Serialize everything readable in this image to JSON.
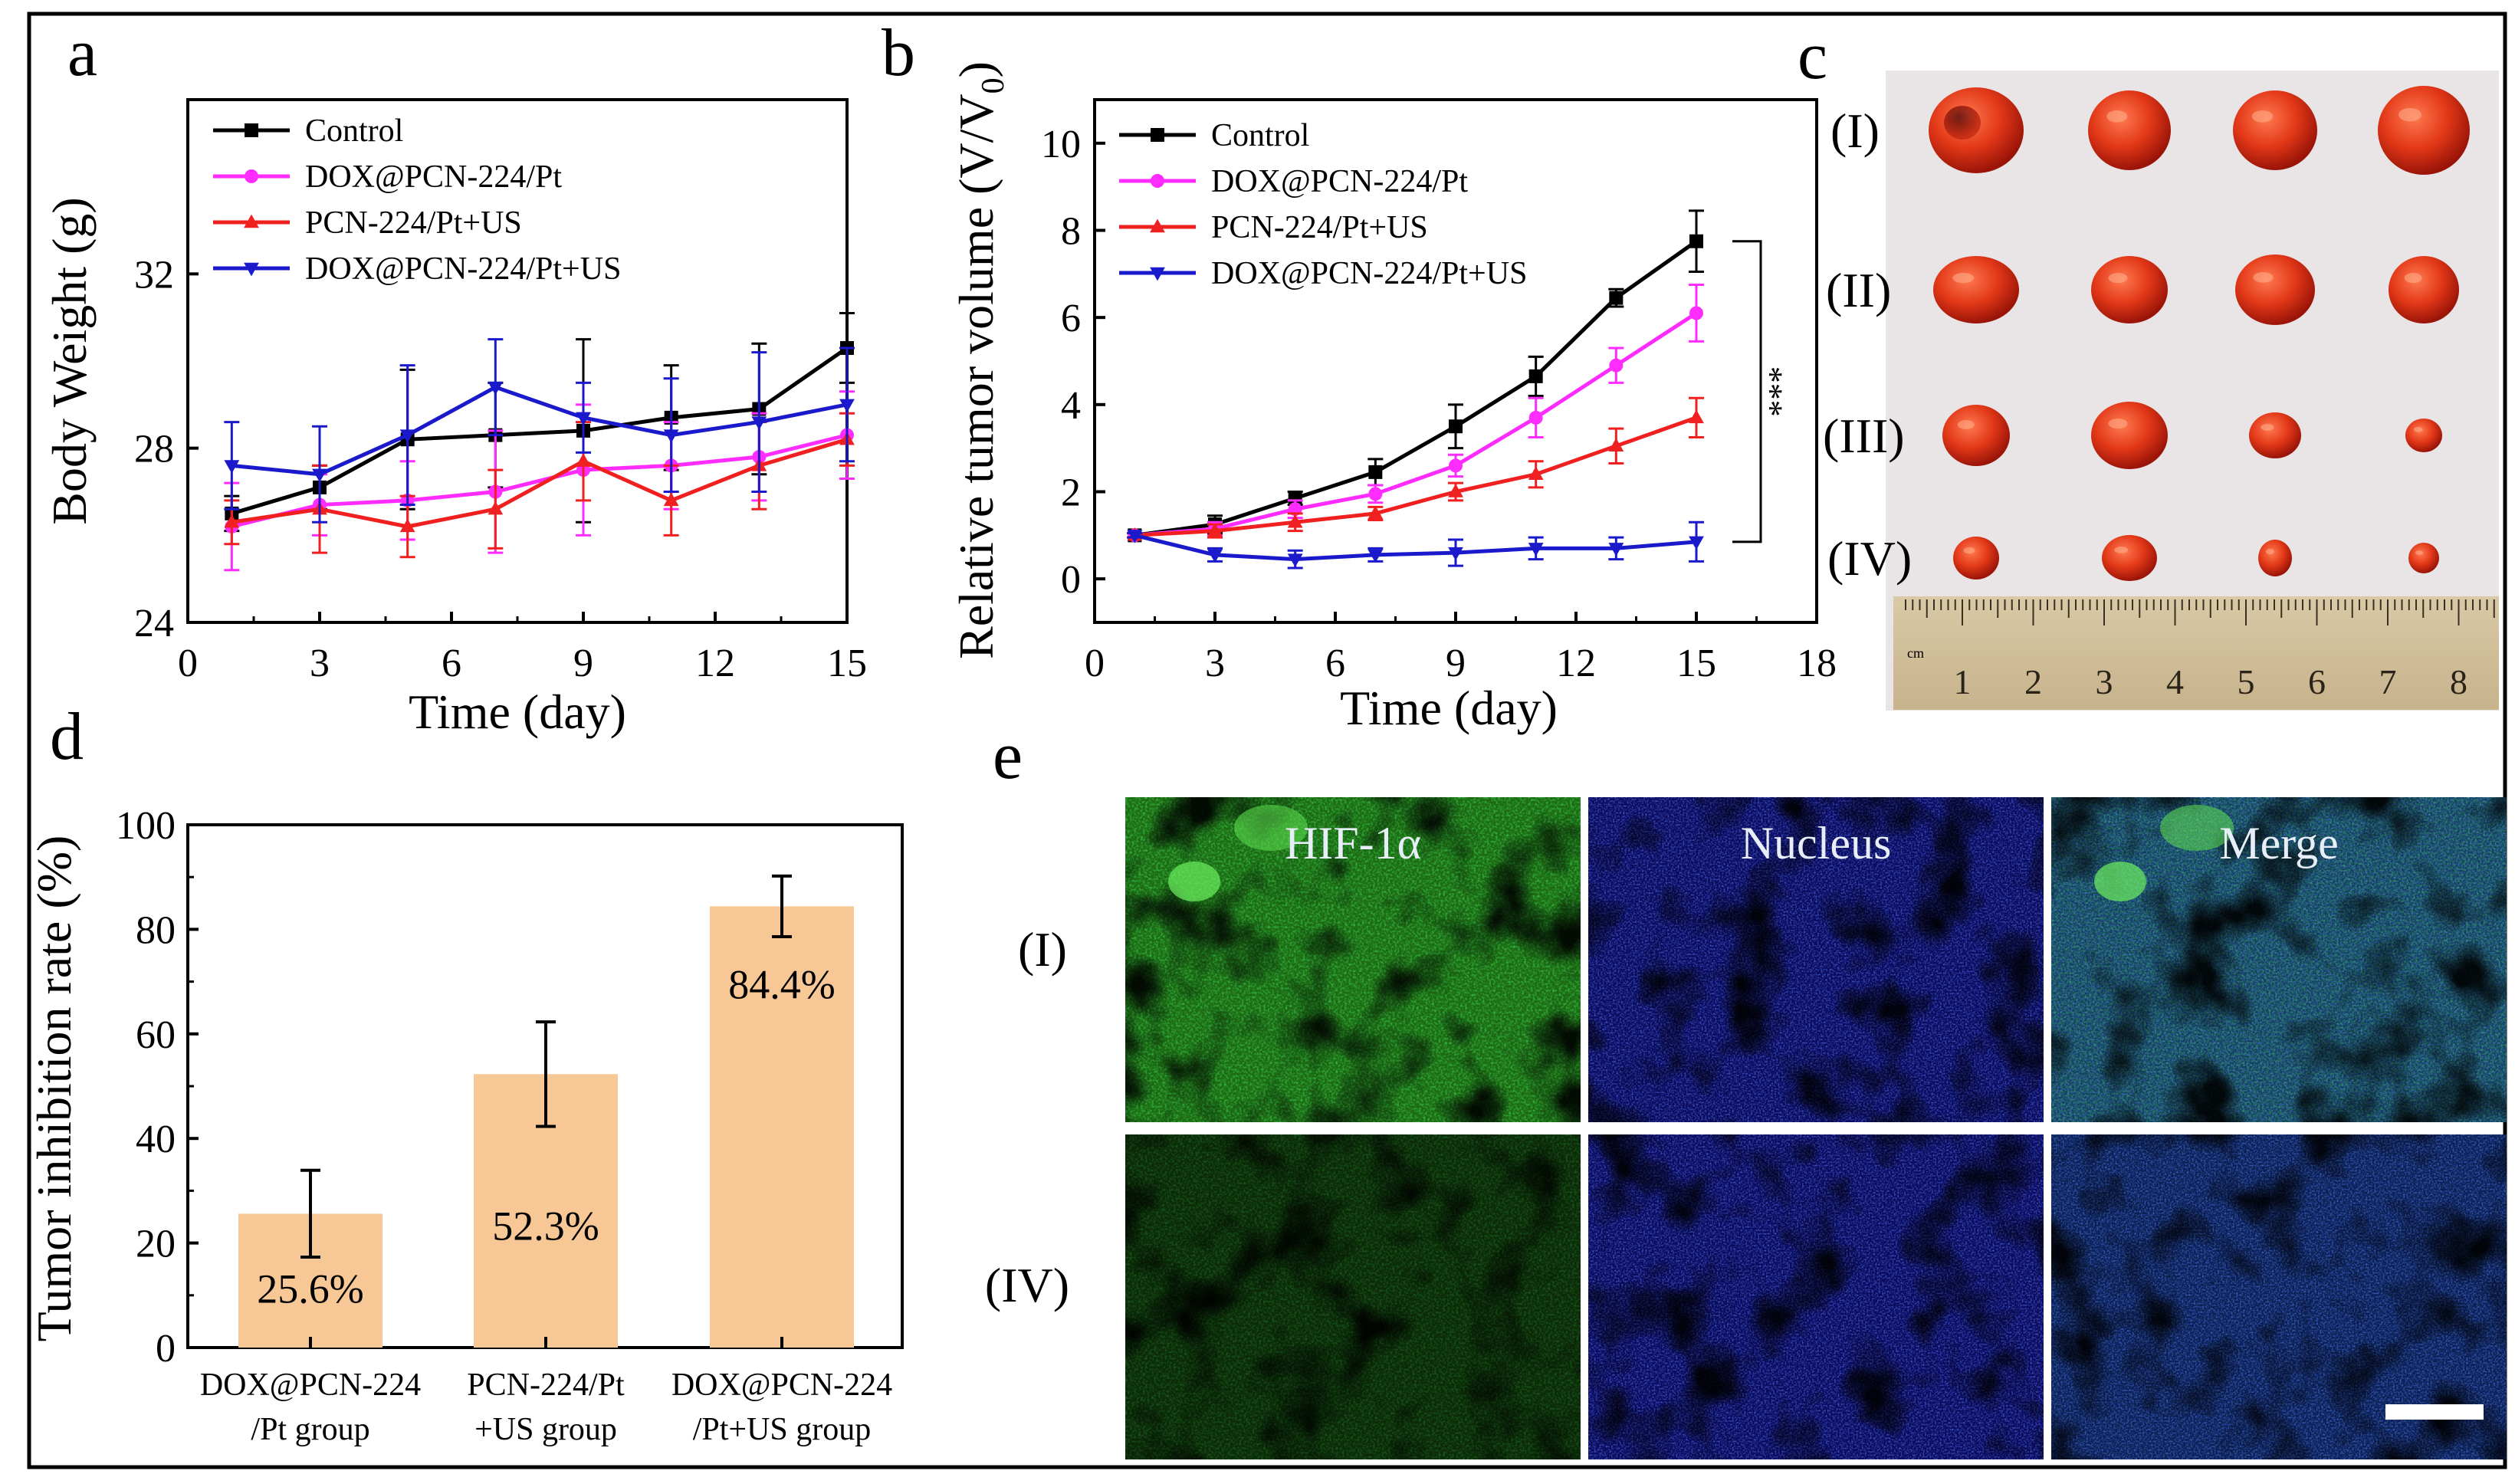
{
  "panels": {
    "a": "a",
    "b": "b",
    "c": "c",
    "d": "d",
    "e": "e"
  },
  "colors": {
    "control": "#000000",
    "dox": "#ff2cff",
    "pcn": "#f02020",
    "doxus": "#1a1acc",
    "bar": "#f7c896",
    "frame": "#000000"
  },
  "chart_data": [
    {
      "id": "a",
      "type": "line",
      "xlabel": "Time (day)",
      "ylabel": "Body Weight (g)",
      "xlim": [
        0,
        15
      ],
      "ylim": [
        24,
        36
      ],
      "xticks": [
        "0",
        "3",
        "6",
        "9",
        "12",
        "15"
      ],
      "yticks": [
        "24",
        "28",
        "32"
      ],
      "x": [
        1,
        3,
        5,
        7,
        9,
        11,
        13,
        15
      ],
      "series": [
        {
          "name": "Control",
          "color": "#000000",
          "marker": "square",
          "values": [
            26.5,
            27.1,
            28.2,
            28.3,
            28.4,
            28.7,
            28.9,
            30.3
          ],
          "err": [
            0.4,
            0.5,
            1.6,
            1.2,
            2.1,
            1.2,
            1.5,
            0.8
          ]
        },
        {
          "name": "DOX@PCN-224/Pt",
          "color": "#ff2cff",
          "marker": "circle",
          "values": [
            26.2,
            26.7,
            26.8,
            27.0,
            27.5,
            27.6,
            27.8,
            28.3
          ],
          "err": [
            1.0,
            0.7,
            0.9,
            1.4,
            1.5,
            1.0,
            1.0,
            1.0
          ]
        },
        {
          "name": "PCN-224/Pt+US",
          "color": "#f02020",
          "marker": "triangle-up",
          "values": [
            26.3,
            26.6,
            26.2,
            26.6,
            27.7,
            26.8,
            27.6,
            28.2
          ],
          "err": [
            0.5,
            1.0,
            0.7,
            0.9,
            0.9,
            0.8,
            1.0,
            0.6
          ]
        },
        {
          "name": "DOX@PCN-224/Pt+US",
          "color": "#1a1acc",
          "marker": "triangle-down",
          "values": [
            27.6,
            27.4,
            28.3,
            29.4,
            28.7,
            28.3,
            28.6,
            29.0
          ],
          "err": [
            1.0,
            1.1,
            1.6,
            1.1,
            0.8,
            1.3,
            1.6,
            1.3
          ]
        }
      ]
    },
    {
      "id": "b",
      "type": "line",
      "xlabel": "Time (day)",
      "ylabel_main": "Relative tumor volume (V/V",
      "ylabel_sub": "0",
      "ylabel_end": ")",
      "xlim": [
        0,
        18
      ],
      "ylim": [
        -1,
        11
      ],
      "xticks": [
        "0",
        "3",
        "6",
        "9",
        "12",
        "15",
        "18"
      ],
      "yticks": [
        "0",
        "2",
        "4",
        "6",
        "8",
        "10"
      ],
      "x": [
        1,
        3,
        5,
        7,
        9,
        11,
        13,
        15
      ],
      "annotation": "***",
      "series": [
        {
          "name": "Control",
          "color": "#000000",
          "marker": "square",
          "values": [
            1.0,
            1.25,
            1.85,
            2.45,
            3.5,
            4.65,
            6.45,
            7.75
          ],
          "err": [
            0.05,
            0.2,
            0.15,
            0.3,
            0.5,
            0.45,
            0.2,
            0.7
          ]
        },
        {
          "name": "DOX@PCN-224/Pt",
          "color": "#ff2cff",
          "marker": "circle",
          "values": [
            1.0,
            1.15,
            1.6,
            1.95,
            2.6,
            3.7,
            4.9,
            6.1
          ],
          "err": [
            0.05,
            0.15,
            0.2,
            0.2,
            0.25,
            0.45,
            0.4,
            0.65
          ]
        },
        {
          "name": "PCN-224/Pt+US",
          "color": "#f02020",
          "marker": "triangle-up",
          "values": [
            1.0,
            1.1,
            1.3,
            1.5,
            2.0,
            2.4,
            3.05,
            3.7
          ],
          "err": [
            0.05,
            0.15,
            0.2,
            0.15,
            0.2,
            0.3,
            0.4,
            0.45
          ]
        },
        {
          "name": "DOX@PCN-224/Pt+US",
          "color": "#1a1acc",
          "marker": "triangle-down",
          "values": [
            1.0,
            0.55,
            0.45,
            0.55,
            0.6,
            0.7,
            0.7,
            0.85
          ],
          "err": [
            0.05,
            0.15,
            0.2,
            0.15,
            0.3,
            0.25,
            0.25,
            0.45
          ]
        }
      ]
    },
    {
      "id": "d",
      "type": "bar",
      "ylabel": "Tumor inhibition rate (%)",
      "ylim": [
        0,
        100
      ],
      "yticks": [
        "0",
        "20",
        "40",
        "60",
        "80",
        "100"
      ],
      "categories": [
        {
          "line1": "DOX@PCN-224",
          "line2": "/Pt group"
        },
        {
          "line1": "PCN-224/Pt",
          "line2": "+US group"
        },
        {
          "line1": "DOX@PCN-224",
          "line2": "/Pt+US group"
        }
      ],
      "values": [
        25.6,
        52.3,
        84.4
      ],
      "err": [
        8.3,
        10.0,
        5.8
      ],
      "labels": [
        "25.6%",
        "52.3%",
        "84.4%"
      ]
    }
  ],
  "photo": {
    "rows": [
      "(I)",
      "(II)",
      "(III)",
      "(IV)"
    ],
    "ruler": [
      "1",
      "2",
      "3",
      "4",
      "5",
      "6",
      "7",
      "8"
    ],
    "ruler_unit": "cm"
  },
  "micrographs": {
    "columns": [
      "HIF-1α",
      "Nucleus",
      "Merge"
    ],
    "rows": [
      "(I)",
      "(IV)"
    ]
  }
}
